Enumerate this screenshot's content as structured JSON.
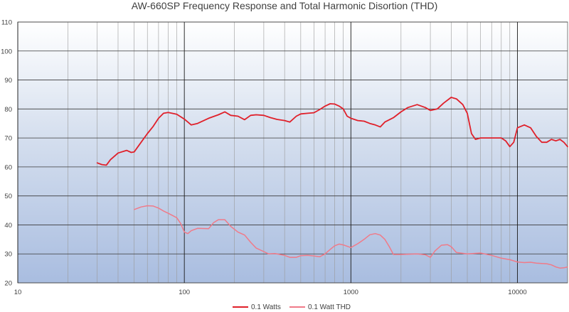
{
  "chart_data": {
    "type": "line",
    "title": "AW-660SP Frequency Response and Total Harmonic Disortion (THD)",
    "xlabel": "",
    "ylabel": "",
    "x_scale": "log",
    "xlim": [
      10,
      20000
    ],
    "ylim": [
      20,
      110
    ],
    "y_ticks": [
      20,
      30,
      40,
      50,
      60,
      70,
      80,
      90,
      100,
      110
    ],
    "x_tick_labels": [
      {
        "value": 10,
        "label": "10"
      },
      {
        "value": 100,
        "label": "100"
      },
      {
        "value": 1000,
        "label": "1000"
      },
      {
        "value": 10000,
        "label": "10000"
      }
    ],
    "grid": true,
    "legend_position": "bottom",
    "series": [
      {
        "name": "0.1 Watts",
        "color": "#e0202a",
        "points": [
          [
            30,
            61.4
          ],
          [
            32,
            60.8
          ],
          [
            34,
            60.6
          ],
          [
            36,
            62.5
          ],
          [
            40,
            64.8
          ],
          [
            45,
            65.7
          ],
          [
            48,
            65.0
          ],
          [
            50,
            65.2
          ],
          [
            55,
            68.5
          ],
          [
            60,
            71.5
          ],
          [
            65,
            74.0
          ],
          [
            70,
            76.8
          ],
          [
            75,
            78.5
          ],
          [
            80,
            78.8
          ],
          [
            90,
            78.2
          ],
          [
            100,
            76.5
          ],
          [
            110,
            74.5
          ],
          [
            120,
            75.0
          ],
          [
            140,
            76.8
          ],
          [
            160,
            78.0
          ],
          [
            175,
            79.0
          ],
          [
            190,
            77.8
          ],
          [
            210,
            77.5
          ],
          [
            230,
            76.3
          ],
          [
            250,
            77.8
          ],
          [
            270,
            78.0
          ],
          [
            300,
            77.8
          ],
          [
            330,
            77.0
          ],
          [
            360,
            76.4
          ],
          [
            400,
            76.0
          ],
          [
            430,
            75.5
          ],
          [
            470,
            77.5
          ],
          [
            500,
            78.3
          ],
          [
            550,
            78.5
          ],
          [
            600,
            78.7
          ],
          [
            650,
            79.8
          ],
          [
            700,
            81.0
          ],
          [
            750,
            81.8
          ],
          [
            800,
            81.7
          ],
          [
            850,
            81.0
          ],
          [
            900,
            80.0
          ],
          [
            950,
            77.5
          ],
          [
            1000,
            76.8
          ],
          [
            1100,
            76.0
          ],
          [
            1200,
            75.8
          ],
          [
            1300,
            75.0
          ],
          [
            1400,
            74.5
          ],
          [
            1500,
            73.8
          ],
          [
            1600,
            75.5
          ],
          [
            1800,
            77.0
          ],
          [
            2000,
            79.0
          ],
          [
            2200,
            80.5
          ],
          [
            2500,
            81.5
          ],
          [
            2800,
            80.5
          ],
          [
            3000,
            79.5
          ],
          [
            3300,
            80.0
          ],
          [
            3600,
            82.0
          ],
          [
            4000,
            84.0
          ],
          [
            4300,
            83.5
          ],
          [
            4700,
            81.5
          ],
          [
            5000,
            78.5
          ],
          [
            5300,
            71.5
          ],
          [
            5600,
            69.5
          ],
          [
            6000,
            70.0
          ],
          [
            7000,
            70.0
          ],
          [
            8000,
            70.0
          ],
          [
            8500,
            69.0
          ],
          [
            9000,
            67.0
          ],
          [
            9500,
            68.5
          ],
          [
            10000,
            73.5
          ],
          [
            11000,
            74.5
          ],
          [
            12000,
            73.5
          ],
          [
            13000,
            70.5
          ],
          [
            14000,
            68.5
          ],
          [
            15000,
            68.5
          ],
          [
            16000,
            69.5
          ],
          [
            17000,
            69.0
          ],
          [
            18000,
            69.5
          ],
          [
            19000,
            68.5
          ],
          [
            20000,
            67.0
          ]
        ]
      },
      {
        "name": "0.1 Watt THD",
        "color": "#f07a88",
        "points": [
          [
            50,
            45.3
          ],
          [
            55,
            46.2
          ],
          [
            60,
            46.6
          ],
          [
            65,
            46.5
          ],
          [
            70,
            45.8
          ],
          [
            75,
            44.8
          ],
          [
            80,
            44.0
          ],
          [
            90,
            42.5
          ],
          [
            95,
            40.5
          ],
          [
            100,
            37.5
          ],
          [
            105,
            37.0
          ],
          [
            110,
            38.0
          ],
          [
            120,
            38.8
          ],
          [
            140,
            38.7
          ],
          [
            150,
            40.8
          ],
          [
            160,
            41.8
          ],
          [
            175,
            41.8
          ],
          [
            190,
            39.5
          ],
          [
            210,
            37.5
          ],
          [
            230,
            36.5
          ],
          [
            250,
            34.0
          ],
          [
            270,
            32.0
          ],
          [
            300,
            30.8
          ],
          [
            320,
            30.0
          ],
          [
            350,
            30.1
          ],
          [
            400,
            29.5
          ],
          [
            430,
            28.8
          ],
          [
            470,
            28.8
          ],
          [
            500,
            29.4
          ],
          [
            550,
            29.5
          ],
          [
            600,
            29.3
          ],
          [
            650,
            29.0
          ],
          [
            700,
            30.0
          ],
          [
            750,
            31.5
          ],
          [
            800,
            32.8
          ],
          [
            850,
            33.4
          ],
          [
            900,
            33.1
          ],
          [
            1000,
            32.2
          ],
          [
            1100,
            33.5
          ],
          [
            1200,
            35.0
          ],
          [
            1300,
            36.6
          ],
          [
            1400,
            37.0
          ],
          [
            1500,
            36.5
          ],
          [
            1600,
            35.0
          ],
          [
            1700,
            32.5
          ],
          [
            1800,
            29.8
          ],
          [
            2000,
            29.8
          ],
          [
            2500,
            30.0
          ],
          [
            2800,
            29.7
          ],
          [
            3000,
            28.8
          ],
          [
            3200,
            31.0
          ],
          [
            3500,
            33.0
          ],
          [
            3800,
            33.2
          ],
          [
            4000,
            32.5
          ],
          [
            4300,
            30.5
          ],
          [
            5000,
            30.0
          ],
          [
            6000,
            30.3
          ],
          [
            7000,
            29.5
          ],
          [
            8000,
            28.5
          ],
          [
            9000,
            28.0
          ],
          [
            10000,
            27.2
          ],
          [
            11000,
            27.0
          ],
          [
            12000,
            27.1
          ],
          [
            13000,
            26.8
          ],
          [
            14000,
            26.7
          ],
          [
            15000,
            26.6
          ],
          [
            16000,
            26.2
          ],
          [
            17000,
            25.5
          ],
          [
            18000,
            25.1
          ],
          [
            19000,
            25.2
          ],
          [
            20000,
            25.5
          ]
        ]
      }
    ]
  }
}
